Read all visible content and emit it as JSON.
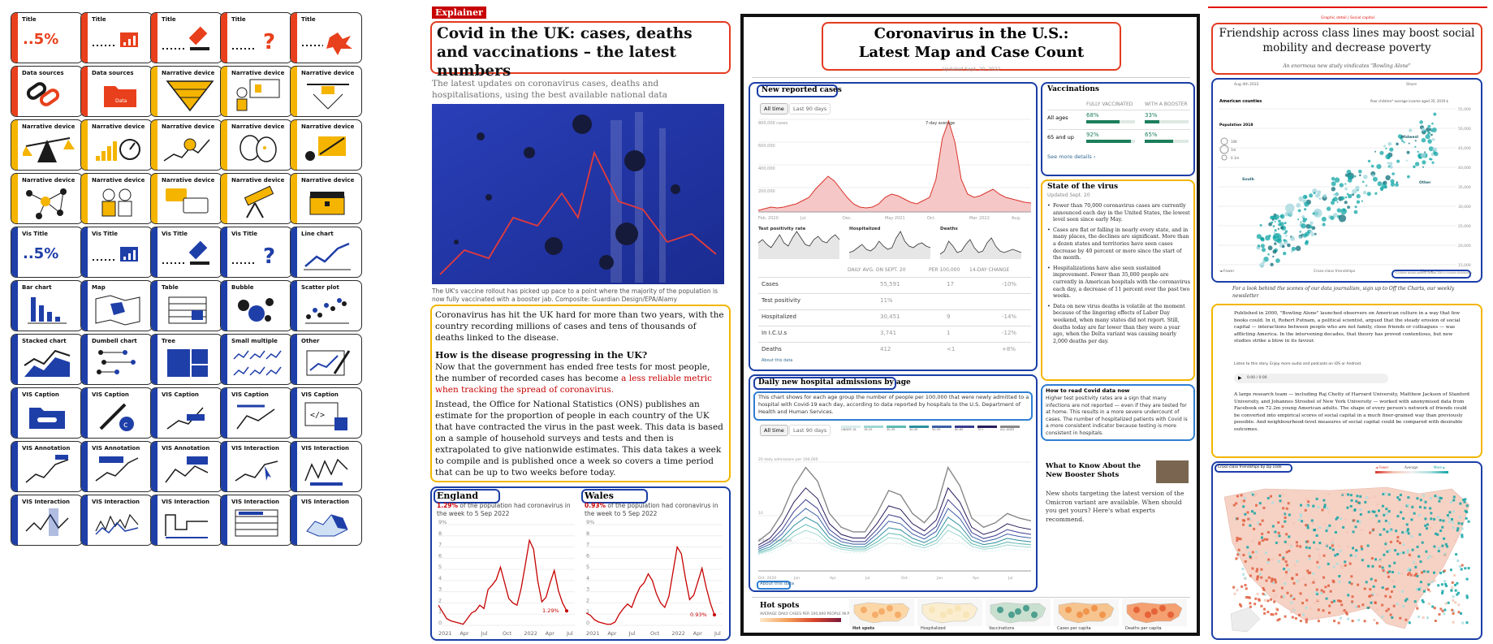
{
  "cards": [
    {
      "label": "Title",
      "cat": "title",
      "icon": "percent"
    },
    {
      "label": "Title",
      "cat": "title",
      "icon": "bars"
    },
    {
      "label": "Title",
      "cat": "title",
      "icon": "gavel"
    },
    {
      "label": "Title",
      "cat": "title",
      "icon": "question"
    },
    {
      "label": "Title",
      "cat": "title",
      "icon": "splash"
    },
    {
      "label": "Data sources",
      "cat": "data",
      "icon": "chain"
    },
    {
      "label": "Data sources",
      "cat": "data",
      "icon": "folder"
    },
    {
      "label": "Narrative device",
      "cat": "narr",
      "icon": "funnel"
    },
    {
      "label": "Narrative device",
      "cat": "narr",
      "icon": "presenter"
    },
    {
      "label": "Narrative device",
      "cat": "narr",
      "icon": "drone"
    },
    {
      "label": "Narrative device",
      "cat": "narr",
      "icon": "scale"
    },
    {
      "label": "Narrative device",
      "cat": "narr",
      "icon": "gauge"
    },
    {
      "label": "Narrative device",
      "cat": "narr",
      "icon": "search-line"
    },
    {
      "label": "Narrative device",
      "cat": "narr",
      "icon": "masks"
    },
    {
      "label": "Narrative device",
      "cat": "narr",
      "icon": "flow"
    },
    {
      "label": "Narrative device",
      "cat": "narr",
      "icon": "network"
    },
    {
      "label": "Narrative device",
      "cat": "narr",
      "icon": "people"
    },
    {
      "label": "Narrative device",
      "cat": "narr",
      "icon": "chat"
    },
    {
      "label": "Narrative device",
      "cat": "narr",
      "icon": "telescope"
    },
    {
      "label": "Narrative device",
      "cat": "narr",
      "icon": "chest"
    },
    {
      "label": "Vis Title",
      "cat": "vis",
      "icon": "percent"
    },
    {
      "label": "Vis Title",
      "cat": "vis",
      "icon": "bars"
    },
    {
      "label": "Vis Title",
      "cat": "vis",
      "icon": "gavel"
    },
    {
      "label": "Vis Title",
      "cat": "vis",
      "icon": "question"
    },
    {
      "label": "Line chart",
      "cat": "vis",
      "icon": "line"
    },
    {
      "label": "Bar chart",
      "cat": "vis",
      "icon": "barchart"
    },
    {
      "label": "Map",
      "cat": "vis",
      "icon": "map"
    },
    {
      "label": "Table",
      "cat": "vis",
      "icon": "table"
    },
    {
      "label": "Bubble",
      "cat": "vis",
      "icon": "bubble"
    },
    {
      "label": "Scatter plot",
      "cat": "vis",
      "icon": "scatter"
    },
    {
      "label": "Stacked chart",
      "cat": "vis",
      "icon": "stacked"
    },
    {
      "label": "Dumbell chart",
      "cat": "vis",
      "icon": "dumbbell"
    },
    {
      "label": "Tree",
      "cat": "vis",
      "icon": "tree"
    },
    {
      "label": "Small multiple",
      "cat": "vis",
      "icon": "multiples"
    },
    {
      "label": "Other",
      "cat": "vis",
      "icon": "pen"
    },
    {
      "label": "VIS Caption",
      "cat": "vis",
      "icon": "folder-blue"
    },
    {
      "label": "VIS Caption",
      "cat": "vis",
      "icon": "copyright"
    },
    {
      "label": "VIS Caption",
      "cat": "vis",
      "icon": "caption-line"
    },
    {
      "label": "VIS Caption",
      "cat": "vis",
      "icon": "caption-line2"
    },
    {
      "label": "VIS Caption",
      "cat": "vis",
      "icon": "code"
    },
    {
      "label": "VIS Annotation",
      "cat": "vis",
      "icon": "anno1"
    },
    {
      "label": "VIS Annotation",
      "cat": "vis",
      "icon": "anno2"
    },
    {
      "label": "VIS Annotation",
      "cat": "vis",
      "icon": "anno3"
    },
    {
      "label": "VIS Interaction",
      "cat": "vis",
      "icon": "inter1"
    },
    {
      "label": "VIS Interaction",
      "cat": "vis",
      "icon": "inter2"
    },
    {
      "label": "VIS Interaction",
      "cat": "vis",
      "icon": "inter3"
    },
    {
      "label": "VIS Interaction",
      "cat": "vis",
      "icon": "inter4"
    },
    {
      "label": "VIS Interaction",
      "cat": "vis",
      "icon": "inter5"
    },
    {
      "label": "VIS Interaction",
      "cat": "vis",
      "icon": "inter6"
    },
    {
      "label": "VIS Interaction",
      "cat": "vis",
      "icon": "inter7"
    }
  ],
  "colors": {
    "title": "#e8401c",
    "data": "#e8401c",
    "narr": "#f4b400",
    "vis": "#1f3fa8",
    "chart_red": "#d9342b",
    "chart_teal": "#12a5a5"
  },
  "guardian": {
    "tag": "Explainer",
    "headline": "Covid in the UK: cases, deaths and vaccinations – the latest numbers",
    "standfirst": "The latest updates on coronavirus cases, deaths and hospitalisations, using the best available national data",
    "caption": "The UK's vaccine rollout has picked up pace to a point where the majority of the population is now fully vaccinated with a booster jab. Composite: Guardian Design/EPA/Alamy",
    "para1": "Coronavirus has hit the UK hard for more than two years, with the country recording millions of cases and tens of thousands of deaths linked to the disease.",
    "subhead": "How is the disease progressing in the UK?",
    "para2": "Now that the government has ended free tests for most people, the number of recorded cases has become ",
    "para2_link": "a less reliable metric when tracking the spread of coronavirus.",
    "para3": "Instead, the Office for National Statistics (ONS) publishes an estimate for the proportion of people in each country of the UK that have contracted the virus in the past week. This data is based on a sample of household surveys and tests and then is extrapolated to give nationwide estimates. This data takes a week to compile and is published once a week so covers a time period that can be up to two weeks before today.",
    "england": {
      "title": "England",
      "pct": "1.29%",
      "desc": "of the population had coronavirus in the week to 5 Sep 2022",
      "end_label": "1.29%"
    },
    "wales": {
      "title": "Wales",
      "pct": "0.93%",
      "desc": "of the population had coronavirus in the week to 5 Sep 2022",
      "end_label": "0.93%"
    },
    "y_ticks": [
      "9%",
      "8",
      "7",
      "6",
      "5",
      "4",
      "3",
      "2",
      "1",
      "0"
    ],
    "x_ticks": [
      "2021",
      "Apr",
      "Jul",
      "Oct",
      "2022",
      "Apr",
      "Jul"
    ]
  },
  "nyt": {
    "headline_line1": "Coronavirus in the U.S.:",
    "headline_line2": "Latest Map and Case Count",
    "updated": "Updated Sept. 20, 2022",
    "new_cases_title": "New reported cases",
    "tabs": [
      "All time",
      "Last 90 days"
    ],
    "y_ticks": [
      "800,000 cases",
      "600,000",
      "400,000",
      "200,000"
    ],
    "x_ticks": [
      "Feb. 2020",
      "Jul.",
      "Dec.",
      "May 2021",
      "Oct.",
      "Mar. 2022",
      "Aug."
    ],
    "avg_label": "7-day average",
    "small_titles": [
      "Test positivity rate",
      "Hospitalized",
      "Deaths"
    ],
    "table_headers": [
      "DAILY AVG. ON SEPT. 20",
      "PER 100,000",
      "14-DAY CHANGE"
    ],
    "table_rows": [
      {
        "label": "Cases",
        "avg": "55,591",
        "per": "17",
        "change": "-10%"
      },
      {
        "label": "Test positivity",
        "avg": "11%",
        "per": "",
        "change": ""
      },
      {
        "label": "Hospitalized",
        "avg": "30,451",
        "per": "9",
        "change": "-14%"
      },
      {
        "label": "In I.C.U.s",
        "avg": "3,741",
        "per": "1",
        "change": "-12%"
      },
      {
        "label": "Deaths",
        "avg": "412",
        "per": "<1",
        "change": "+8%"
      }
    ],
    "read_more": "About this data",
    "vacc_title": "Vaccinations",
    "vacc_headers": [
      "FULLY VACCINATED",
      "WITH A BOOSTER"
    ],
    "vacc_rows": [
      {
        "label": "All ages",
        "full": "68%",
        "full_frac": 0.68,
        "boost": "33%",
        "boost_frac": 0.33
      },
      {
        "label": "65 and up",
        "full": "92%",
        "full_frac": 0.92,
        "boost": "65%",
        "boost_frac": 0.65
      }
    ],
    "vacc_more": "See more details ›",
    "state_title": "State of the virus",
    "state_updated": "Updated Sept. 20",
    "bullets": [
      "Fewer than 70,000 coronavirus cases are currently announced each day in the United States, the lowest level seen since early May.",
      "Cases are flat or falling in nearly every state, and in many places, the declines are significant. More than a dozen states and territories have seen cases decrease by 40 percent or more since the start of the month.",
      "Hospitalizations have also seen sustained improvement. Fewer than 35,000 people are currently in American hospitals with the coronavirus each day, a decrease of 11 percent over the past two weeks.",
      "Data on new virus deaths is volatile at the moment because of the lingering effects of Labor Day weekend, when many states did not report. Still, deaths today are far lower than they were a year ago, when the Delta variant was causing nearly 2,000 deaths per day."
    ],
    "hosp_title": "Daily new hospital admissions by age",
    "hosp_desc": "This chart shows for each age group the number of people per 100,000 that were newly admitted to a hospital with Covid-19 each day, according to data reported by hospitals to the U.S. Department of Health and Human Services.",
    "hosp_legend": [
      "UNDER 18",
      "18-29",
      "30-39",
      "40-49",
      "50-59",
      "60-69",
      "70+",
      "ALL AGES"
    ],
    "hosp_y": [
      "20 daily admissions per 100,000",
      "10",
      "5 daily admissions"
    ],
    "hosp_x": [
      "Oct. 2020",
      "Jan.",
      "Apr.",
      "Jul.",
      "Oct.",
      "Jan.",
      "Apr.",
      "Jul."
    ],
    "read_title": "How to read Covid data now",
    "read_text": "Higher test positivity rates are a sign that many infections are not reported — even if they are tested for at home. This results in a more severe undercount of cases. The number of hospitalized patients with Covid is a more consistent indicator because testing is more consistent in hospitals.",
    "booster_title": "What to Know About the New Booster Shots",
    "booster_text": "New shots targeting the latest version of the Omicron variant are available. When should you get yours? Here's what experts recommend.",
    "hotspots_title": "Hot spots",
    "hotspots_sub": "AVERAGE DAILY CASES PER 100,000 PEOPLE IN PAST WEEK",
    "map_labels": [
      "Hot spots",
      "Hospitalized",
      "Vaccinations",
      "Cases per capita",
      "Deaths per capita"
    ]
  },
  "economist": {
    "kicker": "Graphic detail | Social capital",
    "headline": "Friendship across class lines may boost social mobility and decrease poverty",
    "sub": "An enormous new study vindicates \"Bowling Alone\"",
    "date": "Aug 4th 2022",
    "share": "Share",
    "chart_title": "American counties",
    "chart_sub": "Poor children* average income aged 35, 2019 $",
    "legend_title": "Population 2018",
    "legend_items": [
      "10K",
      "1m",
      "0.1m"
    ],
    "labels": [
      "Midwest",
      "South",
      "Other"
    ],
    "x_labels": [
      "◄ Fewer",
      "Cross-class friendships",
      "More ►"
    ],
    "y_ticks": [
      "55,000",
      "50,000",
      "45,000",
      "40,000",
      "35,000",
      "30,000",
      "25,000",
      "20,000",
      "15,000"
    ],
    "chart_note": "*Children whose parents ranked 25th in income distribution",
    "promo": "For a look behind the scenes of our data journalism, sign up to Off the Charts, our weekly newsletter",
    "promo_link": "Off the Charts",
    "body1": "Published in 2000, \"Bowling Alone\" launched observers on American culture in a way that few books could. In it, Robert Putnam, a political scientist, argued that the steady erosion of social capital — interactions between people who are not family, close friends or colleagues — was afflicting America. In the intervening decades, that theory has proved contentious, but new studies strike a blow in its favour.",
    "listen": "Listen to this story. Enjoy more audio and podcasts on iOS or Android.",
    "audio_time": "0:00 / 0:00",
    "body2": "A large research team — including Raj Chetty of Harvard University, Matthew Jackson of Stanford University, and Johannes Stroebel of New York University — worked with anonymised data from Facebook on 72.2m young American adults. The shape of every person's network of friends could be converted into empirical scores of social capital in a much finer-grained way than previously possible. And neighbourhood-level measures of social capital could be compared with desirable outcomes.",
    "map_title": "Cross-class friendships by zip code",
    "map_legend": [
      "◄ Fewer",
      "Average",
      "More ►"
    ]
  }
}
